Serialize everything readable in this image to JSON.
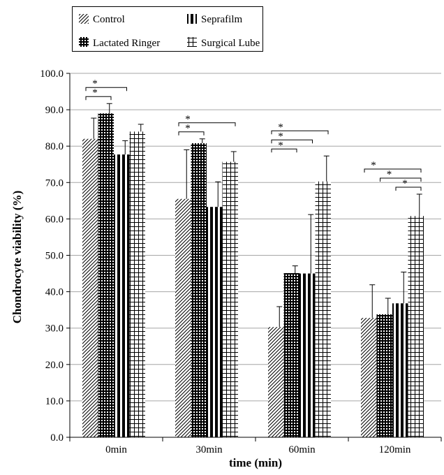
{
  "chart_data": {
    "type": "bar",
    "xlabel": "time (min)",
    "ylabel": "Chondrocyte viability (%)",
    "ylim": [
      0,
      100
    ],
    "yticks": [
      "0.0",
      "10.0",
      "20.0",
      "30.0",
      "40.0",
      "50.0",
      "60.0",
      "70.0",
      "80.0",
      "90.0",
      "100.0"
    ],
    "grid": true,
    "legend_position": "top-left, outside plot",
    "categories": [
      "0min",
      "30min",
      "60min",
      "120min"
    ],
    "series": [
      {
        "name": "Control",
        "pattern": "diagonal",
        "values": [
          82.0,
          65.5,
          30.3,
          32.8
        ],
        "errors": [
          5.7,
          13.5,
          5.6,
          9.1
        ]
      },
      {
        "name": "Lactated Ringer",
        "pattern": "dots",
        "values": [
          89.0,
          80.8,
          45.1,
          33.8
        ],
        "errors": [
          2.7,
          1.2,
          2.0,
          4.4
        ]
      },
      {
        "name": "Seprafilm",
        "pattern": "vertical",
        "values": [
          77.7,
          63.3,
          45.0,
          36.8
        ],
        "errors": [
          3.8,
          6.9,
          16.2,
          8.6
        ]
      },
      {
        "name": "Surgical Lube",
        "pattern": "grid",
        "values": [
          84.0,
          75.7,
          70.3,
          60.8
        ],
        "errors": [
          2.0,
          2.8,
          7.0,
          6.0
        ]
      }
    ],
    "significance": [
      {
        "group": 0,
        "from": 0,
        "to": 2,
        "label": "*"
      },
      {
        "group": 0,
        "from": 0,
        "to": 1,
        "label": "*"
      },
      {
        "group": 1,
        "from": 0,
        "to": 3,
        "label": "*"
      },
      {
        "group": 1,
        "from": 0,
        "to": 1,
        "label": "*"
      },
      {
        "group": 2,
        "from": 0,
        "to": 3,
        "label": "*"
      },
      {
        "group": 2,
        "from": 0,
        "to": 2,
        "label": "*"
      },
      {
        "group": 2,
        "from": 0,
        "to": 1,
        "label": "*"
      },
      {
        "group": 3,
        "from": 0,
        "to": 3,
        "label": "*"
      },
      {
        "group": 3,
        "from": 1,
        "to": 3,
        "label": "*"
      },
      {
        "group": 3,
        "from": 2,
        "to": 3,
        "label": "*"
      }
    ]
  },
  "legend": {
    "items": [
      "Control",
      "Seprafilm",
      "Lactated Ringer",
      "Surgical Lube"
    ]
  }
}
